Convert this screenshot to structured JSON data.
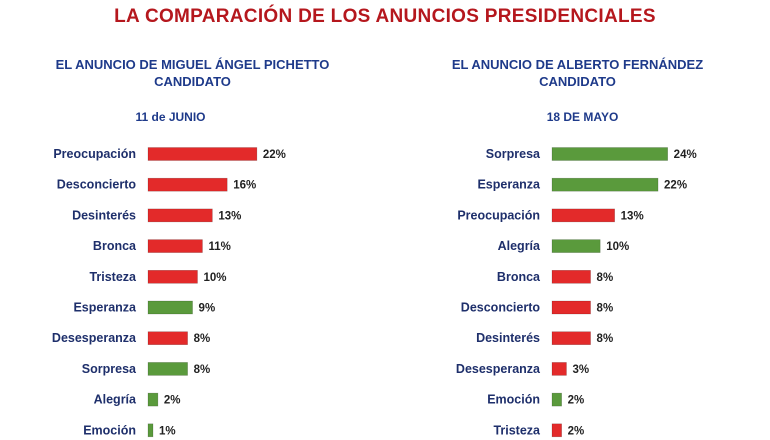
{
  "title": "LA COMPARACIÓN DE LOS ANUNCIOS PRESIDENCIALES",
  "colors": {
    "title": "#b5171d",
    "heading": "#1e3a8a",
    "red": "#e32a2a",
    "green": "#5a9a3c"
  },
  "chart_data": [
    {
      "type": "bar",
      "orientation": "horizontal",
      "title_line1": "EL ANUNCIO DE MIGUEL ÁNGEL PICHETTO",
      "title_line2": "CANDIDATO",
      "date": "11 de JUNIO",
      "categories": [
        "Preocupación",
        "Desconcierto",
        "Desinterés",
        "Bronca",
        "Tristeza",
        "Esperanza",
        "Desesperanza",
        "Sorpresa",
        "Alegría",
        "Emoción"
      ],
      "values": [
        22,
        16,
        13,
        11,
        10,
        9,
        8,
        8,
        2,
        1
      ],
      "value_labels": [
        "22%",
        "16%",
        "13%",
        "11%",
        "10%",
        "9%",
        "8%",
        "8%",
        "2%",
        "1%"
      ],
      "colors": [
        "red",
        "red",
        "red",
        "red",
        "red",
        "green",
        "red",
        "green",
        "green",
        "green"
      ],
      "xlim": [
        0,
        24
      ]
    },
    {
      "type": "bar",
      "orientation": "horizontal",
      "title_line1": "EL ANUNCIO DE ALBERTO FERNÁNDEZ",
      "title_line2": "CANDIDATO",
      "date": "18 DE MAYO",
      "categories": [
        "Sorpresa",
        "Esperanza",
        "Preocupación",
        "Alegría",
        "Bronca",
        "Desconcierto",
        "Desinterés",
        "Desesperanza",
        "Emoción",
        "Tristeza"
      ],
      "values": [
        24,
        22,
        13,
        10,
        8,
        8,
        8,
        3,
        2,
        2
      ],
      "value_labels": [
        "24%",
        "22%",
        "13%",
        "10%",
        "8%",
        "8%",
        "8%",
        "3%",
        "2%",
        "2%"
      ],
      "colors": [
        "green",
        "green",
        "red",
        "green",
        "red",
        "red",
        "red",
        "red",
        "green",
        "red"
      ],
      "xlim": [
        0,
        24
      ]
    }
  ]
}
